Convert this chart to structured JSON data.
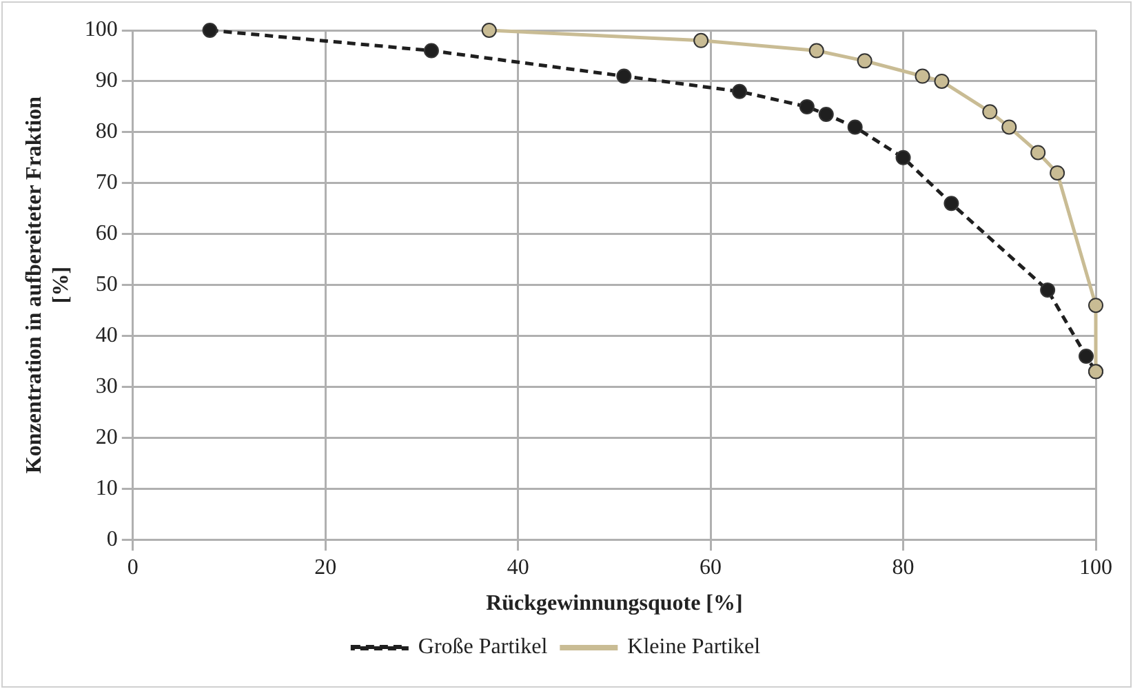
{
  "chart_data": {
    "type": "line",
    "xlabel": "Rückgewinnungsquote [%]",
    "ylabel": "Konzentration in aufbereiteter Fraktion [%]",
    "xlim": [
      0,
      100
    ],
    "xticks": [
      0,
      20,
      40,
      60,
      80,
      100
    ],
    "ylim": [
      0,
      100
    ],
    "yticks": [
      0,
      10,
      20,
      30,
      40,
      50,
      60,
      70,
      80,
      90,
      100
    ],
    "grid": true,
    "legend": "bottom",
    "marker": "circle",
    "series": [
      {
        "name": "Große Partikel",
        "color": "#1f1f1f",
        "line_style": "dashed",
        "x": [
          8,
          31,
          51,
          63,
          70,
          72,
          75,
          80,
          85,
          95,
          99,
          100
        ],
        "values": [
          100,
          96,
          91,
          88,
          85,
          83.5,
          81,
          75,
          66,
          49,
          36,
          33
        ]
      },
      {
        "name": "Kleine Partikel",
        "color": "#c9bc94",
        "line_style": "solid",
        "x": [
          37,
          59,
          71,
          76,
          82,
          84,
          89,
          91,
          94,
          96,
          100,
          100
        ],
        "values": [
          100,
          98,
          96,
          94,
          91,
          90,
          84,
          81,
          76,
          72,
          46,
          33
        ]
      }
    ]
  }
}
